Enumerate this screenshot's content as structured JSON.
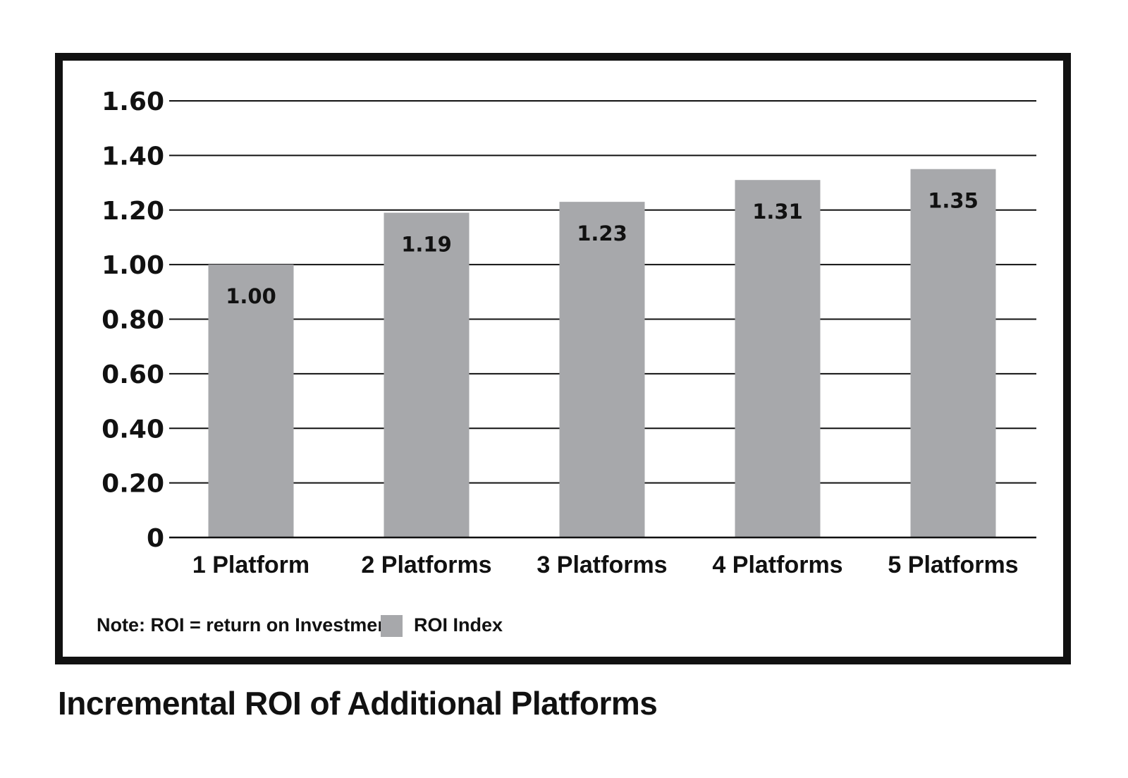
{
  "caption": "Incremental ROI of Additional Platforms",
  "chart_data": {
    "type": "bar",
    "categories": [
      "1 Platform",
      "2 Platforms",
      "3 Platforms",
      "4 Platforms",
      "5 Platforms"
    ],
    "series": [
      {
        "name": "ROI Index",
        "values": [
          1.0,
          1.19,
          1.23,
          1.31,
          1.35
        ]
      }
    ],
    "value_labels": [
      "1.00",
      "1.19",
      "1.23",
      "1.31",
      "1.35"
    ],
    "y_ticks": [
      0,
      0.2,
      0.4,
      0.6,
      0.8,
      1.0,
      1.2,
      1.4,
      1.6
    ],
    "y_tick_labels": [
      "0",
      "0.20",
      "0.40",
      "0.60",
      "0.80",
      "1.00",
      "1.20",
      "1.40",
      "1.60"
    ],
    "ylim": [
      0,
      1.6
    ],
    "grid": true,
    "legend_placement": "bottom-left",
    "note": "Note: ROI = return on Investment",
    "bar_color": "#a7a8ab",
    "text_color": "#111111"
  }
}
